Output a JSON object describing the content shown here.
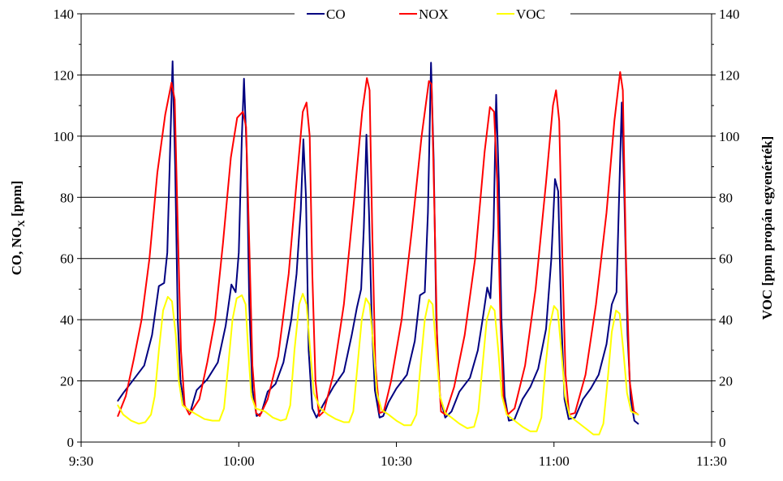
{
  "chart_data": {
    "type": "line",
    "title": "",
    "xlabel": "",
    "ylabel_left_main": "CO, NO",
    "ylabel_left_sub": "X",
    "ylabel_left_unit": "  [ppm]",
    "ylabel_right": "VOC   [ppm propán egyenérték]",
    "x_unit": "minutes",
    "xlim": [
      570,
      690
    ],
    "ylim": [
      0,
      140
    ],
    "x_ticks": [
      {
        "value": 570,
        "label": "9:30"
      },
      {
        "value": 600,
        "label": "10:00"
      },
      {
        "value": 630,
        "label": "10:30"
      },
      {
        "value": 660,
        "label": "11:00"
      },
      {
        "value": 690,
        "label": "11:30"
      }
    ],
    "y_ticks": [
      {
        "value": 0,
        "label": "0"
      },
      {
        "value": 20,
        "label": "20"
      },
      {
        "value": 40,
        "label": "40"
      },
      {
        "value": 60,
        "label": "60"
      },
      {
        "value": 80,
        "label": "80"
      },
      {
        "value": 100,
        "label": "100"
      },
      {
        "value": 120,
        "label": "120"
      },
      {
        "value": 140,
        "label": "140"
      }
    ],
    "grid": "horizontal",
    "legend_position": "top-center",
    "series": [
      {
        "name": "CO",
        "color": "#000080",
        "points": [
          [
            577.0,
            13.5
          ],
          [
            578.0,
            16.0
          ],
          [
            580.0,
            20.5
          ],
          [
            582.0,
            25.0
          ],
          [
            583.5,
            35.0
          ],
          [
            584.8,
            51.0
          ],
          [
            585.8,
            52.0
          ],
          [
            586.4,
            62.0
          ],
          [
            587.0,
            100.0
          ],
          [
            587.4,
            124.5
          ],
          [
            587.9,
            90.0
          ],
          [
            588.4,
            40.0
          ],
          [
            588.9,
            20.0
          ],
          [
            589.7,
            11.5
          ],
          [
            590.8,
            10.0
          ],
          [
            592.0,
            17.0
          ],
          [
            594.0,
            20.5
          ],
          [
            596.0,
            26.0
          ],
          [
            597.5,
            38.0
          ],
          [
            598.6,
            51.5
          ],
          [
            599.4,
            49.0
          ],
          [
            600.0,
            62.0
          ],
          [
            600.6,
            100.0
          ],
          [
            601.0,
            118.8
          ],
          [
            601.5,
            95.0
          ],
          [
            602.0,
            45.0
          ],
          [
            602.6,
            17.0
          ],
          [
            603.4,
            8.5
          ],
          [
            604.3,
            9.5
          ],
          [
            605.5,
            16.5
          ],
          [
            607.0,
            19.0
          ],
          [
            608.5,
            26.0
          ],
          [
            610.0,
            40.0
          ],
          [
            611.0,
            55.0
          ],
          [
            611.8,
            76.0
          ],
          [
            612.3,
            99.0
          ],
          [
            612.8,
            80.0
          ],
          [
            613.3,
            30.0
          ],
          [
            614.0,
            11.0
          ],
          [
            614.8,
            8.0
          ],
          [
            616.0,
            12.0
          ],
          [
            618.0,
            18.0
          ],
          [
            620.0,
            23.0
          ],
          [
            621.5,
            35.0
          ],
          [
            622.5,
            44.0
          ],
          [
            623.3,
            50.0
          ],
          [
            623.8,
            70.0
          ],
          [
            624.3,
            100.5
          ],
          [
            624.8,
            75.0
          ],
          [
            625.3,
            40.0
          ],
          [
            625.9,
            17.0
          ],
          [
            626.8,
            8.0
          ],
          [
            627.5,
            8.5
          ],
          [
            628.5,
            13.0
          ],
          [
            630.0,
            17.5
          ],
          [
            632.0,
            22.0
          ],
          [
            633.5,
            33.0
          ],
          [
            634.5,
            48.0
          ],
          [
            635.4,
            49.0
          ],
          [
            636.0,
            75.0
          ],
          [
            636.6,
            124.0
          ],
          [
            637.1,
            92.0
          ],
          [
            637.6,
            40.0
          ],
          [
            638.3,
            15.0
          ],
          [
            639.3,
            8.0
          ],
          [
            640.5,
            10.0
          ],
          [
            642.0,
            16.5
          ],
          [
            644.0,
            21.0
          ],
          [
            645.5,
            30.0
          ],
          [
            646.5,
            41.0
          ],
          [
            647.3,
            50.5
          ],
          [
            647.9,
            47.0
          ],
          [
            648.5,
            70.0
          ],
          [
            649.0,
            113.5
          ],
          [
            649.5,
            85.0
          ],
          [
            650.0,
            40.0
          ],
          [
            650.6,
            15.0
          ],
          [
            651.4,
            7.0
          ],
          [
            652.5,
            7.5
          ],
          [
            654.0,
            14.0
          ],
          [
            655.5,
            18.0
          ],
          [
            657.0,
            24.0
          ],
          [
            658.5,
            37.0
          ],
          [
            659.5,
            60.0
          ],
          [
            660.2,
            86.0
          ],
          [
            660.8,
            82.0
          ],
          [
            661.4,
            40.0
          ],
          [
            662.0,
            14.0
          ],
          [
            662.8,
            7.5
          ],
          [
            664.0,
            8.0
          ],
          [
            665.5,
            14.0
          ],
          [
            667.0,
            17.5
          ],
          [
            668.5,
            22.0
          ],
          [
            670.0,
            32.0
          ],
          [
            671.0,
            45.0
          ],
          [
            671.9,
            49.0
          ],
          [
            672.4,
            80.0
          ],
          [
            672.9,
            111.0
          ],
          [
            673.4,
            80.0
          ],
          [
            674.0,
            35.0
          ],
          [
            674.6,
            14.0
          ],
          [
            675.3,
            7.0
          ],
          [
            676.0,
            6.0
          ]
        ]
      },
      {
        "name": "NOX",
        "color": "#ff0000",
        "points": [
          [
            577.0,
            8.5
          ],
          [
            578.5,
            15.0
          ],
          [
            580.0,
            27.0
          ],
          [
            581.5,
            40.0
          ],
          [
            583.0,
            60.0
          ],
          [
            584.5,
            88.0
          ],
          [
            586.0,
            107.0
          ],
          [
            587.2,
            117.5
          ],
          [
            587.8,
            112.0
          ],
          [
            588.4,
            70.0
          ],
          [
            589.0,
            30.0
          ],
          [
            589.7,
            12.0
          ],
          [
            590.6,
            9.0
          ],
          [
            592.5,
            14.0
          ],
          [
            594.0,
            26.0
          ],
          [
            595.5,
            40.0
          ],
          [
            597.0,
            65.0
          ],
          [
            598.5,
            93.0
          ],
          [
            599.7,
            106.0
          ],
          [
            600.8,
            108.0
          ],
          [
            601.4,
            103.0
          ],
          [
            602.0,
            65.0
          ],
          [
            602.6,
            25.0
          ],
          [
            603.3,
            9.5
          ],
          [
            604.0,
            8.5
          ],
          [
            605.5,
            14.0
          ],
          [
            607.5,
            28.0
          ],
          [
            609.5,
            55.0
          ],
          [
            611.0,
            85.0
          ],
          [
            612.2,
            108.0
          ],
          [
            612.9,
            111.0
          ],
          [
            613.5,
            100.0
          ],
          [
            614.0,
            55.0
          ],
          [
            614.6,
            20.0
          ],
          [
            615.3,
            8.5
          ],
          [
            616.2,
            10.0
          ],
          [
            618.0,
            22.0
          ],
          [
            620.0,
            45.0
          ],
          [
            622.0,
            80.0
          ],
          [
            623.5,
            108.0
          ],
          [
            624.4,
            119.0
          ],
          [
            624.9,
            115.0
          ],
          [
            625.4,
            70.0
          ],
          [
            626.0,
            25.0
          ],
          [
            626.8,
            9.5
          ],
          [
            627.6,
            10.0
          ],
          [
            629.0,
            20.0
          ],
          [
            631.0,
            40.0
          ],
          [
            633.0,
            70.0
          ],
          [
            634.8,
            100.0
          ],
          [
            636.2,
            118.0
          ],
          [
            636.7,
            117.0
          ],
          [
            637.2,
            80.0
          ],
          [
            637.8,
            30.0
          ],
          [
            638.5,
            10.0
          ],
          [
            639.3,
            9.0
          ],
          [
            641.0,
            18.0
          ],
          [
            643.0,
            35.0
          ],
          [
            645.0,
            60.0
          ],
          [
            646.8,
            95.0
          ],
          [
            647.8,
            109.5
          ],
          [
            648.6,
            108.0
          ],
          [
            649.2,
            85.0
          ],
          [
            649.8,
            40.0
          ],
          [
            650.4,
            14.0
          ],
          [
            651.2,
            9.0
          ],
          [
            652.5,
            11.0
          ],
          [
            654.5,
            25.0
          ],
          [
            656.5,
            50.0
          ],
          [
            658.5,
            85.0
          ],
          [
            659.8,
            110.0
          ],
          [
            660.4,
            115.0
          ],
          [
            661.0,
            105.0
          ],
          [
            661.6,
            60.0
          ],
          [
            662.2,
            22.0
          ],
          [
            662.9,
            9.0
          ],
          [
            664.0,
            9.5
          ],
          [
            666.0,
            22.0
          ],
          [
            668.0,
            45.0
          ],
          [
            670.0,
            75.0
          ],
          [
            671.5,
            105.0
          ],
          [
            672.6,
            121.0
          ],
          [
            673.1,
            115.0
          ],
          [
            673.7,
            60.0
          ],
          [
            674.4,
            20.0
          ],
          [
            675.2,
            10.0
          ],
          [
            676.0,
            9.0
          ]
        ]
      },
      {
        "name": "VOC",
        "color": "#ffff00",
        "points": [
          [
            577.0,
            12.0
          ],
          [
            578.0,
            9.0
          ],
          [
            579.5,
            7.0
          ],
          [
            581.0,
            6.0
          ],
          [
            582.2,
            6.5
          ],
          [
            583.3,
            9.0
          ],
          [
            584.0,
            15.0
          ],
          [
            584.8,
            30.0
          ],
          [
            585.6,
            43.0
          ],
          [
            586.5,
            47.5
          ],
          [
            587.3,
            46.0
          ],
          [
            588.0,
            35.0
          ],
          [
            588.6,
            20.0
          ],
          [
            589.3,
            12.0
          ],
          [
            590.5,
            10.5
          ],
          [
            592.0,
            9.0
          ],
          [
            593.5,
            7.5
          ],
          [
            595.0,
            7.0
          ],
          [
            596.3,
            7.0
          ],
          [
            597.2,
            11.0
          ],
          [
            598.0,
            25.0
          ],
          [
            598.8,
            40.0
          ],
          [
            599.6,
            47.0
          ],
          [
            600.6,
            48.0
          ],
          [
            601.3,
            45.0
          ],
          [
            601.8,
            30.0
          ],
          [
            602.4,
            15.0
          ],
          [
            603.2,
            11.0
          ],
          [
            605.0,
            10.0
          ],
          [
            606.5,
            8.0
          ],
          [
            608.0,
            7.0
          ],
          [
            609.0,
            7.5
          ],
          [
            609.8,
            12.0
          ],
          [
            610.6,
            30.0
          ],
          [
            611.5,
            45.0
          ],
          [
            612.2,
            48.5
          ],
          [
            612.9,
            45.0
          ],
          [
            613.6,
            30.0
          ],
          [
            614.3,
            16.0
          ],
          [
            615.5,
            11.0
          ],
          [
            617.0,
            9.0
          ],
          [
            618.5,
            7.5
          ],
          [
            620.0,
            6.5
          ],
          [
            621.0,
            6.5
          ],
          [
            621.8,
            10.0
          ],
          [
            622.6,
            25.0
          ],
          [
            623.4,
            40.0
          ],
          [
            624.2,
            47.0
          ],
          [
            624.9,
            45.0
          ],
          [
            625.6,
            32.0
          ],
          [
            626.3,
            16.0
          ],
          [
            627.2,
            10.5
          ],
          [
            628.5,
            9.0
          ],
          [
            630.0,
            7.0
          ],
          [
            631.5,
            5.5
          ],
          [
            632.8,
            5.5
          ],
          [
            633.8,
            9.0
          ],
          [
            634.6,
            25.0
          ],
          [
            635.4,
            40.0
          ],
          [
            636.2,
            46.5
          ],
          [
            636.9,
            45.0
          ],
          [
            637.6,
            30.0
          ],
          [
            638.3,
            15.0
          ],
          [
            639.3,
            9.5
          ],
          [
            640.5,
            8.0
          ],
          [
            642.0,
            6.0
          ],
          [
            643.5,
            4.5
          ],
          [
            644.8,
            5.0
          ],
          [
            645.6,
            10.0
          ],
          [
            646.4,
            25.0
          ],
          [
            647.2,
            40.0
          ],
          [
            648.0,
            44.5
          ],
          [
            648.7,
            43.0
          ],
          [
            649.4,
            30.0
          ],
          [
            650.1,
            15.0
          ],
          [
            651.0,
            9.0
          ],
          [
            652.5,
            7.0
          ],
          [
            654.0,
            5.0
          ],
          [
            655.5,
            3.5
          ],
          [
            656.7,
            3.5
          ],
          [
            657.6,
            8.0
          ],
          [
            658.4,
            25.0
          ],
          [
            659.2,
            38.0
          ],
          [
            660.0,
            44.5
          ],
          [
            660.7,
            43.0
          ],
          [
            661.4,
            30.0
          ],
          [
            662.1,
            15.0
          ],
          [
            663.0,
            8.5
          ],
          [
            664.5,
            6.5
          ],
          [
            666.0,
            4.5
          ],
          [
            667.5,
            2.5
          ],
          [
            668.6,
            2.5
          ],
          [
            669.4,
            6.0
          ],
          [
            670.2,
            20.0
          ],
          [
            671.0,
            36.0
          ],
          [
            671.8,
            43.0
          ],
          [
            672.5,
            42.0
          ],
          [
            673.2,
            30.0
          ],
          [
            673.9,
            16.0
          ],
          [
            674.7,
            10.0
          ],
          [
            676.0,
            9.0
          ]
        ]
      }
    ]
  }
}
